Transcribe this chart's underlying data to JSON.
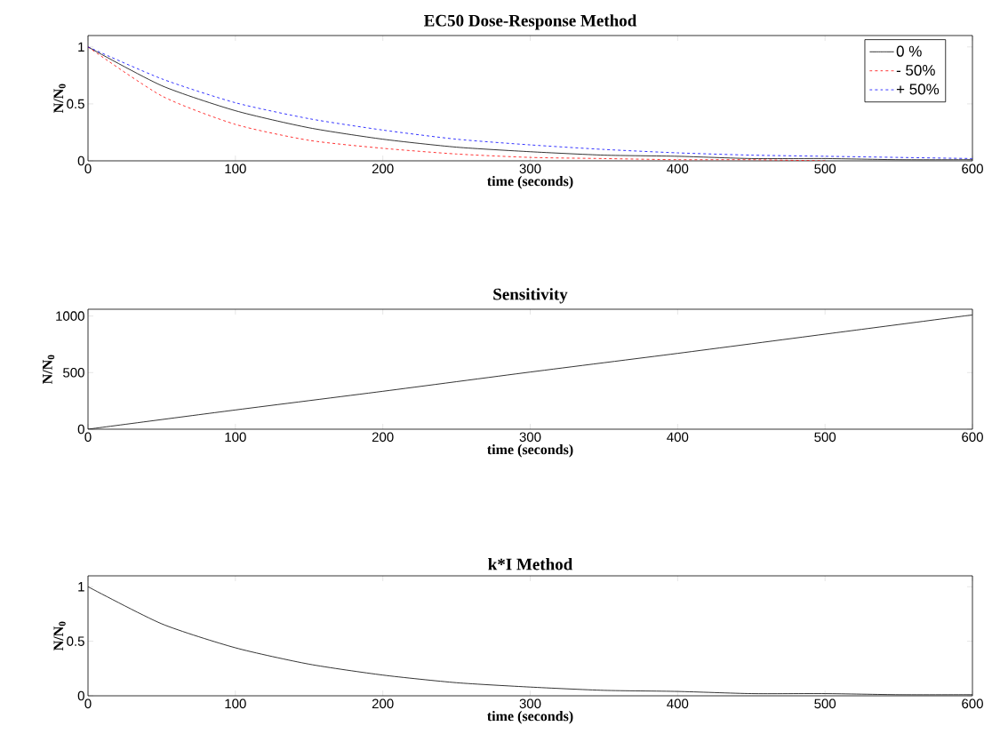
{
  "chart_data": [
    {
      "type": "line",
      "title": "EC50 Dose-Response Method",
      "xlabel": "time (seconds)",
      "ylabel": "N/N$_{0}$",
      "xlim": [
        0,
        600
      ],
      "ylim": [
        0,
        1.1
      ],
      "xticks": [
        0,
        100,
        200,
        300,
        400,
        500,
        600
      ],
      "yticks": [
        0,
        0.5,
        1
      ],
      "legend": "top right",
      "grid": false,
      "x": [
        0,
        50,
        100,
        150,
        200,
        250,
        300,
        350,
        400,
        450,
        500,
        550,
        600
      ],
      "series": [
        {
          "name": "0 %",
          "color": "#000000",
          "line_style": "solid",
          "values": [
            1,
            0.66,
            0.44,
            0.29,
            0.19,
            0.12,
            0.08,
            0.05,
            0.04,
            0.02,
            0.02,
            0.01,
            0.01
          ]
        },
        {
          "name": "- 50%",
          "color": "#ff0000",
          "line_style": "dashed",
          "values": [
            1,
            0.57,
            0.32,
            0.18,
            0.11,
            0.06,
            0.03,
            0.02,
            0.01,
            0.01,
            0,
            null,
            null
          ]
        },
        {
          "name": "+ 50%",
          "color": "#0000ff",
          "line_style": "dashed",
          "values": [
            1,
            0.72,
            0.51,
            0.37,
            0.27,
            0.19,
            0.14,
            0.1,
            0.07,
            0.05,
            0.04,
            0.03,
            0.02
          ]
        }
      ]
    },
    {
      "type": "line",
      "title": "Sensitivity",
      "xlabel": "time (seconds)",
      "ylabel": "N/N$_{0}$",
      "xlim": [
        0,
        600
      ],
      "ylim": [
        0,
        1060
      ],
      "xticks": [
        0,
        100,
        200,
        300,
        400,
        500,
        600
      ],
      "yticks": [
        0,
        500,
        1000
      ],
      "grid": false,
      "x": [
        0,
        100,
        200,
        300,
        400,
        500,
        600
      ],
      "series": [
        {
          "color": "#000000",
          "line_style": "solid",
          "values": [
            0,
            170,
            335,
            505,
            670,
            840,
            1010
          ]
        }
      ]
    },
    {
      "type": "line",
      "title": "k*I Method",
      "xlabel": "time (seconds)",
      "ylabel": "N/N$_{0}$",
      "xlim": [
        0,
        600
      ],
      "ylim": [
        0,
        1.1
      ],
      "xticks": [
        0,
        100,
        200,
        300,
        400,
        500,
        600
      ],
      "yticks": [
        0,
        0.5,
        1
      ],
      "grid": false,
      "x": [
        0,
        50,
        100,
        150,
        200,
        250,
        300,
        350,
        400,
        450,
        500,
        550,
        600
      ],
      "series": [
        {
          "color": "#000000",
          "line_style": "solid",
          "values": [
            1,
            0.66,
            0.44,
            0.29,
            0.19,
            0.12,
            0.08,
            0.05,
            0.04,
            0.02,
            0.02,
            0.01,
            0.01
          ]
        }
      ]
    }
  ]
}
